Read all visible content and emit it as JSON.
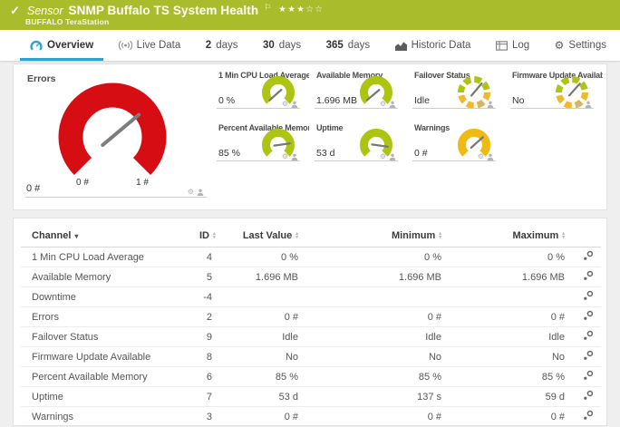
{
  "colors": {
    "header_green": "#a9bd2c",
    "accent_blue": "#2da3d2",
    "gauge_red": "#d60d12",
    "gauge_green": "#adc412",
    "gauge_yellow": "#efba11"
  },
  "header": {
    "status_icon": "check",
    "kind_label": "Sensor",
    "title": "SNMP Buffalo TS System Health",
    "device": "BUFFALO TeraStation",
    "rating": {
      "filled": 3,
      "total": 5
    }
  },
  "tabs": [
    {
      "name": "overview",
      "label": "Overview",
      "icon": "gauge-icon",
      "active": true
    },
    {
      "name": "live-data",
      "label": "Live Data",
      "icon": "live-icon"
    },
    {
      "name": "2-days",
      "num": "2",
      "label": "days"
    },
    {
      "name": "30-days",
      "num": "30",
      "label": "days"
    },
    {
      "name": "365-days",
      "num": "365",
      "label": "days"
    },
    {
      "name": "historic-data",
      "label": "Historic Data",
      "icon": "chart-icon"
    },
    {
      "name": "log",
      "label": "Log",
      "icon": "log-icon"
    },
    {
      "name": "settings",
      "label": "Settings",
      "icon": "gear-icon"
    }
  ],
  "gauges": {
    "main": {
      "label": "Errors",
      "value": "0 #",
      "scale_min": "0 #",
      "scale_max": "1 #",
      "color": "#d60d12",
      "needle_deg": 320
    },
    "mini": [
      {
        "label": "1 Min CPU Load Average",
        "value": "0 %",
        "color": "#adc412",
        "needle_deg": 138,
        "style": "solid"
      },
      {
        "label": "Available Memory",
        "value": "1.696 MB",
        "color": "#adc412",
        "needle_deg": 140,
        "style": "solid"
      },
      {
        "label": "Failover Status",
        "value": "Idle",
        "color": "#adc412",
        "color2": "#eeb92a",
        "needle_deg": 310,
        "style": "segmented"
      },
      {
        "label": "Firmware Update Available",
        "value": "No",
        "color": "#adc412",
        "color2": "#eeb92a",
        "needle_deg": 312,
        "style": "segmented"
      },
      {
        "label": "Percent Available Memory",
        "value": "85 %",
        "color": "#adc412",
        "needle_deg": 352,
        "style": "solid"
      },
      {
        "label": "Uptime",
        "value": "53 d",
        "color": "#adc412",
        "needle_deg": 8,
        "style": "solid"
      },
      {
        "label": "Warnings",
        "value": "0 #",
        "color": "#efba11",
        "needle_deg": 318,
        "style": "solid"
      }
    ]
  },
  "table": {
    "columns": [
      "Channel",
      "ID",
      "Last Value",
      "Minimum",
      "Maximum"
    ],
    "sorted_by": "Channel",
    "rows": [
      {
        "channel": "1 Min CPU Load Average",
        "id": "4",
        "last": "0 %",
        "min": "0 %",
        "max": "0 %"
      },
      {
        "channel": "Available Memory",
        "id": "5",
        "last": "1.696 MB",
        "min": "1.696 MB",
        "max": "1.696 MB"
      },
      {
        "channel": "Downtime",
        "id": "-4",
        "last": "",
        "min": "",
        "max": ""
      },
      {
        "channel": "Errors",
        "id": "2",
        "last": "0 #",
        "min": "0 #",
        "max": "0 #"
      },
      {
        "channel": "Failover Status",
        "id": "9",
        "last": "Idle",
        "min": "Idle",
        "max": "Idle"
      },
      {
        "channel": "Firmware Update Available",
        "id": "8",
        "last": "No",
        "min": "No",
        "max": "No"
      },
      {
        "channel": "Percent Available Memory",
        "id": "6",
        "last": "85 %",
        "min": "85 %",
        "max": "85 %"
      },
      {
        "channel": "Uptime",
        "id": "7",
        "last": "53 d",
        "min": "137 s",
        "max": "59 d"
      },
      {
        "channel": "Warnings",
        "id": "3",
        "last": "0 #",
        "min": "0 #",
        "max": "0 #"
      }
    ]
  }
}
